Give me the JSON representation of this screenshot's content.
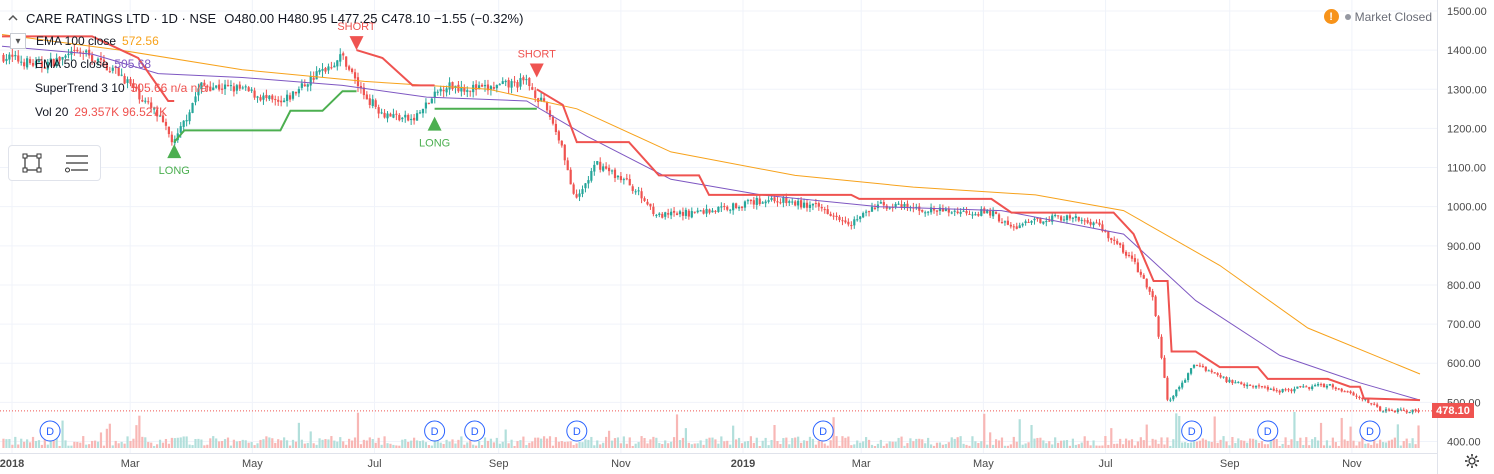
{
  "header": {
    "collapse_icon": "chevron-up-icon",
    "title": "CARE RATINGS LTD · 1D · NSE",
    "ohlc": "O480.00 H480.95 L477.25 C478.10 −1.55 (−0.32%)"
  },
  "market_status": {
    "warning_icon": "exclamation-icon",
    "warning_glyph": "!",
    "text": "Market Closed"
  },
  "legends": [
    {
      "name": "EMA 100 close",
      "value": "572.56",
      "color": "#f7a21b"
    },
    {
      "name": "EMA 50 close",
      "value": "505.68",
      "color": "#7e57c2"
    },
    {
      "name": "SuperTrend 3 10",
      "value": "505.66  n/a  n/a",
      "color": "#ef5350"
    },
    {
      "name": "Vol 20",
      "value": "29.357K  96.527K",
      "color": "#ef5350"
    }
  ],
  "toolbar": {
    "select_tool_icon": "rectangle-select-icon",
    "list_tool_icon": "object-tree-icon"
  },
  "current_price": "478.10",
  "settings_icon": "gear-icon",
  "colors": {
    "up": "#26a69a",
    "down": "#ef5350",
    "ema100": "#f7a21b",
    "ema50": "#7e57c2",
    "st_short": "#ef5350",
    "st_long": "#4caf50",
    "vol_up": "#b2dfdb",
    "vol_down": "#f8b7b5"
  },
  "chart_data": {
    "type": "candlestick",
    "title": "CARE RATINGS LTD · 1D · NSE",
    "ylim": [
      400,
      1500
    ],
    "y_ticks": [
      "1500.00",
      "1400.00",
      "1300.00",
      "1200.00",
      "1100.00",
      "1000.00",
      "900.00",
      "800.00",
      "700.00",
      "600.00",
      "500.00",
      "400.00"
    ],
    "x_tick_labels": [
      "2018",
      "Mar",
      "May",
      "Jul",
      "Sep",
      "Nov",
      "2019",
      "Mar",
      "May",
      "Jul",
      "Sep",
      "Nov"
    ],
    "date_range": [
      "2018-01-01",
      "2019-12-10"
    ],
    "close_path": [
      [
        "2018-01-01",
        1385
      ],
      [
        "2018-01-20",
        1360
      ],
      [
        "2018-02-10",
        1395
      ],
      [
        "2018-03-01",
        1340
      ],
      [
        "2018-03-20",
        1230
      ],
      [
        "2018-03-28",
        1160
      ],
      [
        "2018-04-10",
        1310
      ],
      [
        "2018-05-01",
        1300
      ],
      [
        "2018-05-20",
        1260
      ],
      [
        "2018-06-05",
        1330
      ],
      [
        "2018-06-20",
        1385
      ],
      [
        "2018-06-30",
        1290
      ],
      [
        "2018-07-10",
        1240
      ],
      [
        "2018-07-25",
        1220
      ],
      [
        "2018-08-10",
        1310
      ],
      [
        "2018-08-30",
        1300
      ],
      [
        "2018-09-20",
        1320
      ],
      [
        "2018-10-01",
        1240
      ],
      [
        "2018-10-08",
        1150
      ],
      [
        "2018-10-14",
        1010
      ],
      [
        "2018-10-25",
        1110
      ],
      [
        "2018-11-10",
        1060
      ],
      [
        "2018-11-25",
        975
      ],
      [
        "2018-12-20",
        990
      ],
      [
        "2019-01-20",
        1020
      ],
      [
        "2019-02-15",
        995
      ],
      [
        "2019-03-01",
        960
      ],
      [
        "2019-03-15",
        1005
      ],
      [
        "2019-04-10",
        990
      ],
      [
        "2019-05-10",
        985
      ],
      [
        "2019-05-20",
        945
      ],
      [
        "2019-06-10",
        975
      ],
      [
        "2019-07-01",
        960
      ],
      [
        "2019-07-20",
        860
      ],
      [
        "2019-07-30",
        760
      ],
      [
        "2019-08-06",
        500
      ],
      [
        "2019-08-12",
        540
      ],
      [
        "2019-08-20",
        600
      ],
      [
        "2019-09-05",
        555
      ],
      [
        "2019-10-01",
        530
      ],
      [
        "2019-10-25",
        545
      ],
      [
        "2019-11-10",
        515
      ],
      [
        "2019-11-20",
        480
      ],
      [
        "2019-12-10",
        478
      ]
    ],
    "ema_100": [
      [
        "2018-01-01",
        1440
      ],
      [
        "2018-03-01",
        1400
      ],
      [
        "2018-05-01",
        1350
      ],
      [
        "2018-07-01",
        1320
      ],
      [
        "2018-09-01",
        1300
      ],
      [
        "2018-10-15",
        1250
      ],
      [
        "2018-12-01",
        1140
      ],
      [
        "2019-02-01",
        1080
      ],
      [
        "2019-04-01",
        1050
      ],
      [
        "2019-06-01",
        1030
      ],
      [
        "2019-07-15",
        990
      ],
      [
        "2019-09-01",
        850
      ],
      [
        "2019-10-15",
        690
      ],
      [
        "2019-12-10",
        572.56
      ]
    ],
    "ema_50": [
      [
        "2018-01-01",
        1410
      ],
      [
        "2018-02-15",
        1390
      ],
      [
        "2018-03-20",
        1340
      ],
      [
        "2018-05-01",
        1330
      ],
      [
        "2018-06-20",
        1310
      ],
      [
        "2018-08-01",
        1280
      ],
      [
        "2018-09-20",
        1270
      ],
      [
        "2018-10-20",
        1180
      ],
      [
        "2018-12-01",
        1070
      ],
      [
        "2019-01-15",
        1030
      ],
      [
        "2019-03-15",
        1000
      ],
      [
        "2019-05-15",
        990
      ],
      [
        "2019-07-15",
        930
      ],
      [
        "2019-08-20",
        760
      ],
      [
        "2019-10-01",
        620
      ],
      [
        "2019-11-10",
        550
      ],
      [
        "2019-12-10",
        505.68
      ]
    ],
    "supertrend": [
      {
        "direction": "short",
        "points": [
          [
            "2018-01-01",
            1435
          ],
          [
            "2018-02-15",
            1435
          ],
          [
            "2018-03-10",
            1380
          ],
          [
            "2018-03-25",
            1270
          ],
          [
            "2018-03-28",
            1270
          ]
        ]
      },
      {
        "direction": "long",
        "points": [
          [
            "2018-03-28",
            1165
          ],
          [
            "2018-04-02",
            1195
          ],
          [
            "2018-05-20",
            1195
          ],
          [
            "2018-05-25",
            1245
          ],
          [
            "2018-06-10",
            1245
          ],
          [
            "2018-06-20",
            1295
          ],
          [
            "2018-06-27",
            1295
          ]
        ]
      },
      {
        "direction": "short",
        "points": [
          [
            "2018-06-27",
            1400
          ],
          [
            "2018-07-10",
            1380
          ],
          [
            "2018-07-25",
            1310
          ],
          [
            "2018-08-05",
            1310
          ]
        ]
      },
      {
        "direction": "long",
        "points": [
          [
            "2018-08-05",
            1250
          ],
          [
            "2018-09-25",
            1250
          ]
        ]
      },
      {
        "direction": "short",
        "points": [
          [
            "2018-09-25",
            1300
          ],
          [
            "2018-10-08",
            1260
          ],
          [
            "2018-10-15",
            1165
          ],
          [
            "2018-11-10",
            1165
          ],
          [
            "2018-11-25",
            1080
          ],
          [
            "2018-12-15",
            1080
          ],
          [
            "2018-12-20",
            1030
          ],
          [
            "2019-03-01",
            1030
          ],
          [
            "2019-03-05",
            1020
          ],
          [
            "2019-05-10",
            1020
          ],
          [
            "2019-05-20",
            985
          ],
          [
            "2019-07-10",
            985
          ],
          [
            "2019-07-20",
            930
          ],
          [
            "2019-07-30",
            810
          ],
          [
            "2019-08-06",
            810
          ],
          [
            "2019-08-08",
            630
          ],
          [
            "2019-08-20",
            630
          ],
          [
            "2019-09-01",
            590
          ],
          [
            "2019-09-20",
            590
          ],
          [
            "2019-09-25",
            560
          ],
          [
            "2019-10-25",
            560
          ],
          [
            "2019-11-05",
            540
          ],
          [
            "2019-11-10",
            540
          ],
          [
            "2019-11-12",
            510
          ],
          [
            "2019-12-10",
            505.66
          ]
        ]
      }
    ],
    "signals": [
      {
        "type": "long",
        "label": "LONG",
        "date": "2018-03-28",
        "price": 1160
      },
      {
        "type": "short",
        "label": "SHORT",
        "date": "2018-06-27",
        "price": 1400
      },
      {
        "type": "long",
        "label": "LONG",
        "date": "2018-08-05",
        "price": 1230
      },
      {
        "type": "short",
        "label": "SHORT",
        "date": "2018-09-25",
        "price": 1330
      }
    ],
    "dividend_markers": [
      {
        "label": "D",
        "date": "2018-01-25"
      },
      {
        "label": "D",
        "date": "2018-08-05"
      },
      {
        "label": "D",
        "date": "2018-08-25"
      },
      {
        "label": "D",
        "date": "2018-10-15"
      },
      {
        "label": "D",
        "date": "2019-02-15"
      },
      {
        "label": "D",
        "date": "2019-08-18"
      },
      {
        "label": "D",
        "date": "2019-09-25"
      },
      {
        "label": "D",
        "date": "2019-11-15"
      }
    ],
    "last_price": 478.1
  }
}
